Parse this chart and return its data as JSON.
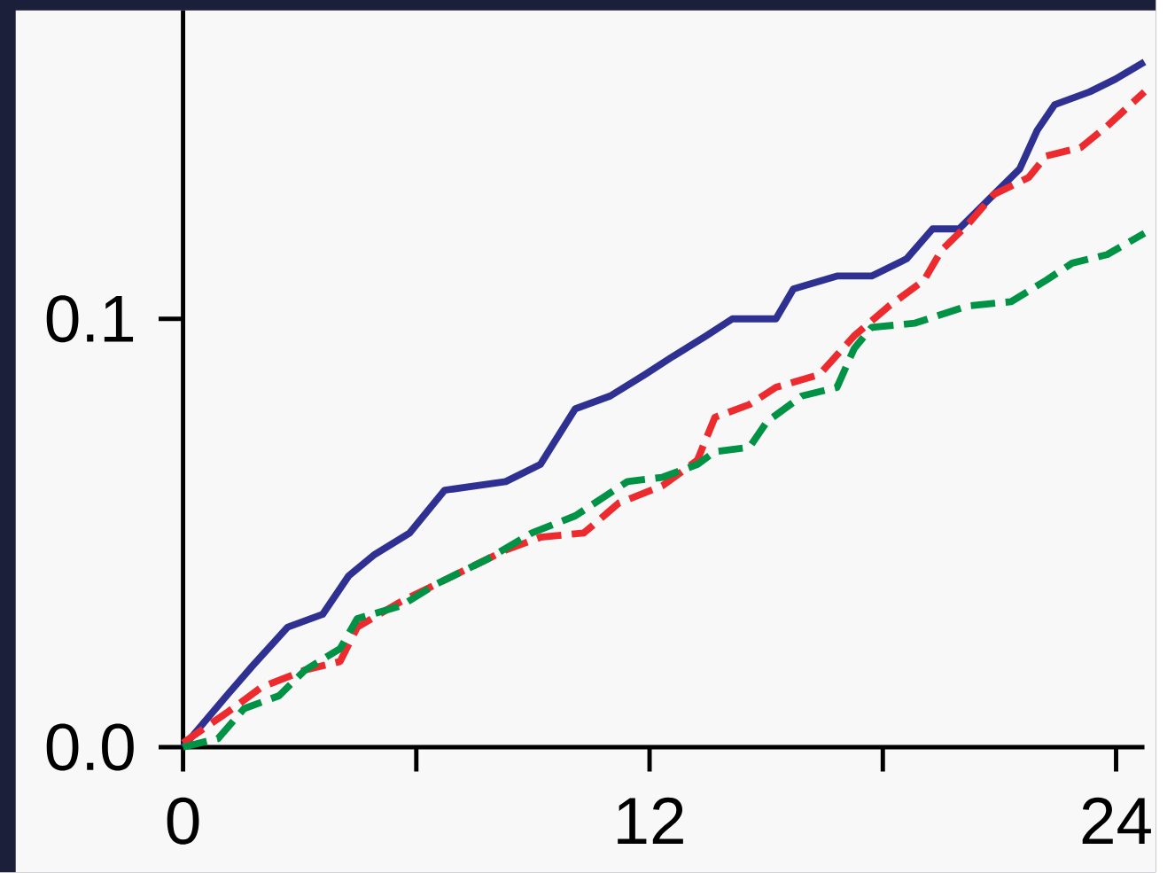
{
  "chart_data": {
    "type": "line",
    "xlim": [
      0,
      24.73
    ],
    "ylim": [
      0,
      0.172
    ],
    "xticks": [
      0,
      12,
      24
    ],
    "yticks": [
      {
        "value": 0,
        "label": "0.0"
      },
      {
        "value": 0.1,
        "label": "0.1"
      }
    ],
    "marker": "none",
    "series": [
      {
        "color": "#2e3192",
        "line_style": "solid",
        "x": [
          0,
          1.12,
          1.79,
          2.69,
          3.59,
          4.26,
          4.93,
          5.83,
          6.73,
          8.3,
          9.19,
          10.09,
          10.99,
          11.88,
          12.56,
          13.45,
          14.13,
          15.25,
          15.7,
          16.82,
          17.71,
          18.61,
          19.28,
          19.96,
          20.85,
          21.52,
          21.97,
          22.42,
          23.32,
          23.99,
          24.73
        ],
        "values": [
          0,
          0.012,
          0.019,
          0.028,
          0.031,
          0.04,
          0.045,
          0.05,
          0.06,
          0.062,
          0.066,
          0.079,
          0.082,
          0.087,
          0.091,
          0.096,
          0.1,
          0.1,
          0.107,
          0.11,
          0.11,
          0.114,
          0.121,
          0.121,
          0.129,
          0.135,
          0.144,
          0.15,
          0.153,
          0.156,
          0.16
        ]
      },
      {
        "color": "#ed2a2e",
        "line_style": "dashed",
        "x": [
          0,
          1.12,
          2.02,
          3.14,
          4.04,
          4.48,
          5.61,
          6.95,
          8.3,
          9.19,
          10.31,
          11.21,
          12.33,
          13.23,
          13.68,
          14.57,
          15.25,
          16.37,
          17.26,
          18.16,
          19.06,
          19.51,
          20.18,
          20.85,
          21.75,
          22.2,
          23.09,
          23.77,
          24.73
        ],
        "values": [
          0.001,
          0.008,
          0.014,
          0.018,
          0.02,
          0.028,
          0.034,
          0.04,
          0.046,
          0.049,
          0.05,
          0.057,
          0.061,
          0.067,
          0.077,
          0.08,
          0.084,
          0.087,
          0.096,
          0.103,
          0.109,
          0.116,
          0.122,
          0.129,
          0.133,
          0.138,
          0.14,
          0.145,
          0.153
        ]
      },
      {
        "color": "#009245",
        "line_style": "dashed",
        "x": [
          0,
          0.9,
          1.57,
          2.47,
          3.14,
          4.04,
          4.48,
          5.61,
          6.5,
          7.85,
          8.97,
          10.09,
          11.43,
          12.33,
          13.23,
          13.68,
          14.57,
          15.02,
          15.92,
          16.82,
          17.26,
          17.71,
          18.83,
          20.18,
          21.3,
          22.2,
          22.87,
          23.77,
          24.73
        ],
        "values": [
          0,
          0.002,
          0.009,
          0.012,
          0.018,
          0.023,
          0.03,
          0.033,
          0.038,
          0.044,
          0.05,
          0.054,
          0.062,
          0.063,
          0.066,
          0.069,
          0.07,
          0.076,
          0.082,
          0.084,
          0.093,
          0.098,
          0.099,
          0.103,
          0.104,
          0.109,
          0.113,
          0.115,
          0.12
        ]
      }
    ]
  }
}
